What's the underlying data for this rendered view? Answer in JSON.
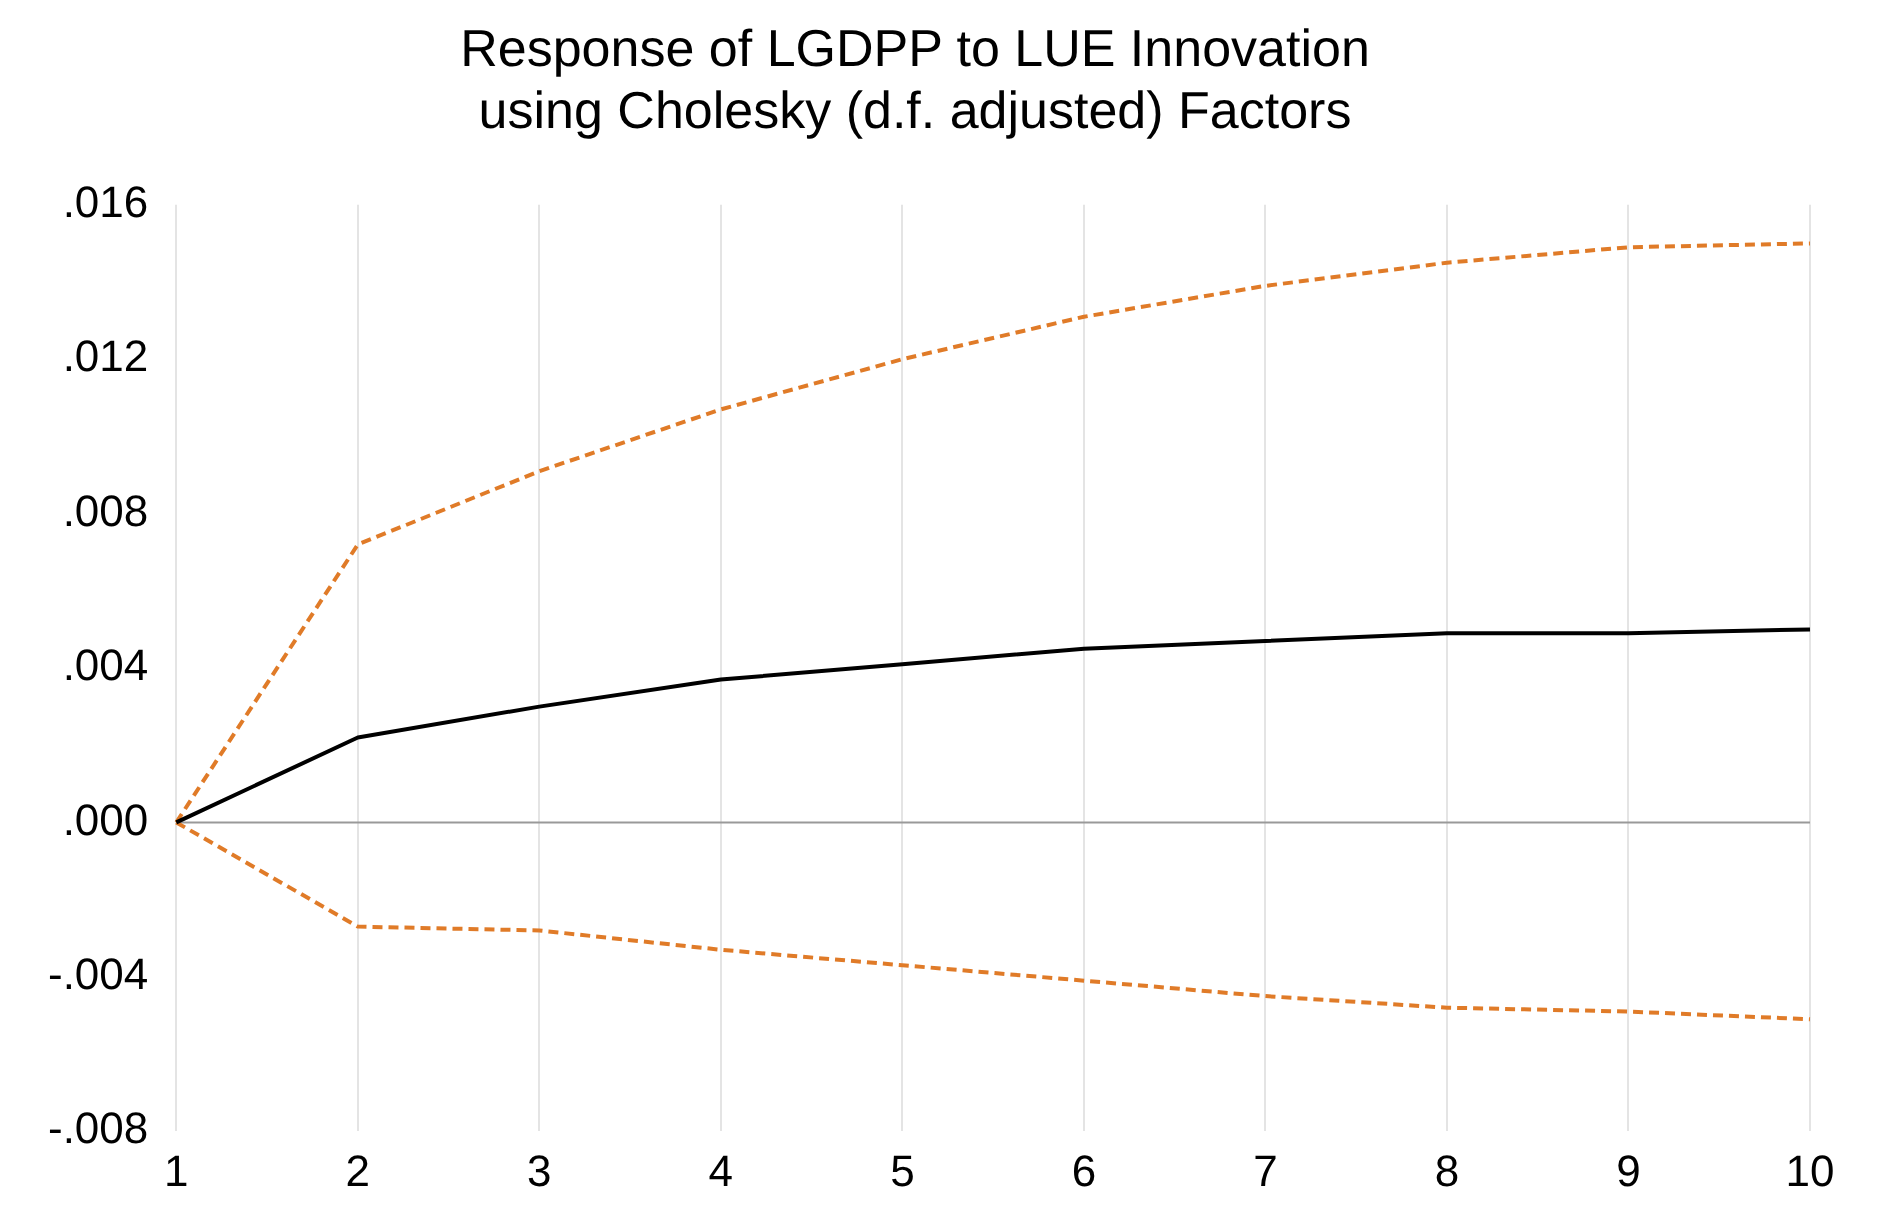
{
  "chart_data": {
    "type": "line",
    "title": "Response of LGDPP to LUE Innovation\nusing Cholesky (d.f. adjusted) Factors",
    "categories": [
      "1",
      "2",
      "3",
      "4",
      "5",
      "6",
      "7",
      "8",
      "9",
      "10"
    ],
    "series": [
      {
        "color": "#000000",
        "line_style": "solid",
        "values": [
          0,
          0.0022,
          0.003,
          0.0037,
          0.0041,
          0.0045,
          0.0047,
          0.0049,
          0.0049,
          0.005
        ]
      },
      {
        "color": "#e07b28",
        "line_style": "dashed",
        "values": [
          0,
          0.0072,
          0.0091,
          0.0107,
          0.012,
          0.0131,
          0.0139,
          0.0145,
          0.0149,
          0.015
        ]
      },
      {
        "color": "#e07b28",
        "line_style": "dashed",
        "values": [
          0,
          -0.0027,
          -0.0028,
          -0.0033,
          -0.0037,
          -0.0041,
          -0.0045,
          -0.0048,
          -0.0049,
          -0.0051
        ]
      }
    ],
    "ylim": [
      -0.008,
      0.016
    ],
    "yticks": [
      {
        "value": -0.008,
        "label": "-.008"
      },
      {
        "value": -0.004,
        "label": "-.004"
      },
      {
        "value": 0,
        "label": ".000"
      },
      {
        "value": 0.004,
        "label": ".004"
      },
      {
        "value": 0.008,
        "label": ".008"
      },
      {
        "value": 0.012,
        "label": ".012"
      },
      {
        "value": 0.016,
        "label": ".016"
      }
    ],
    "grid": "x",
    "legend": false,
    "marker": "none",
    "ref_lines": [
      {
        "axis": "y",
        "value": 0,
        "color": "#999999"
      }
    ]
  }
}
